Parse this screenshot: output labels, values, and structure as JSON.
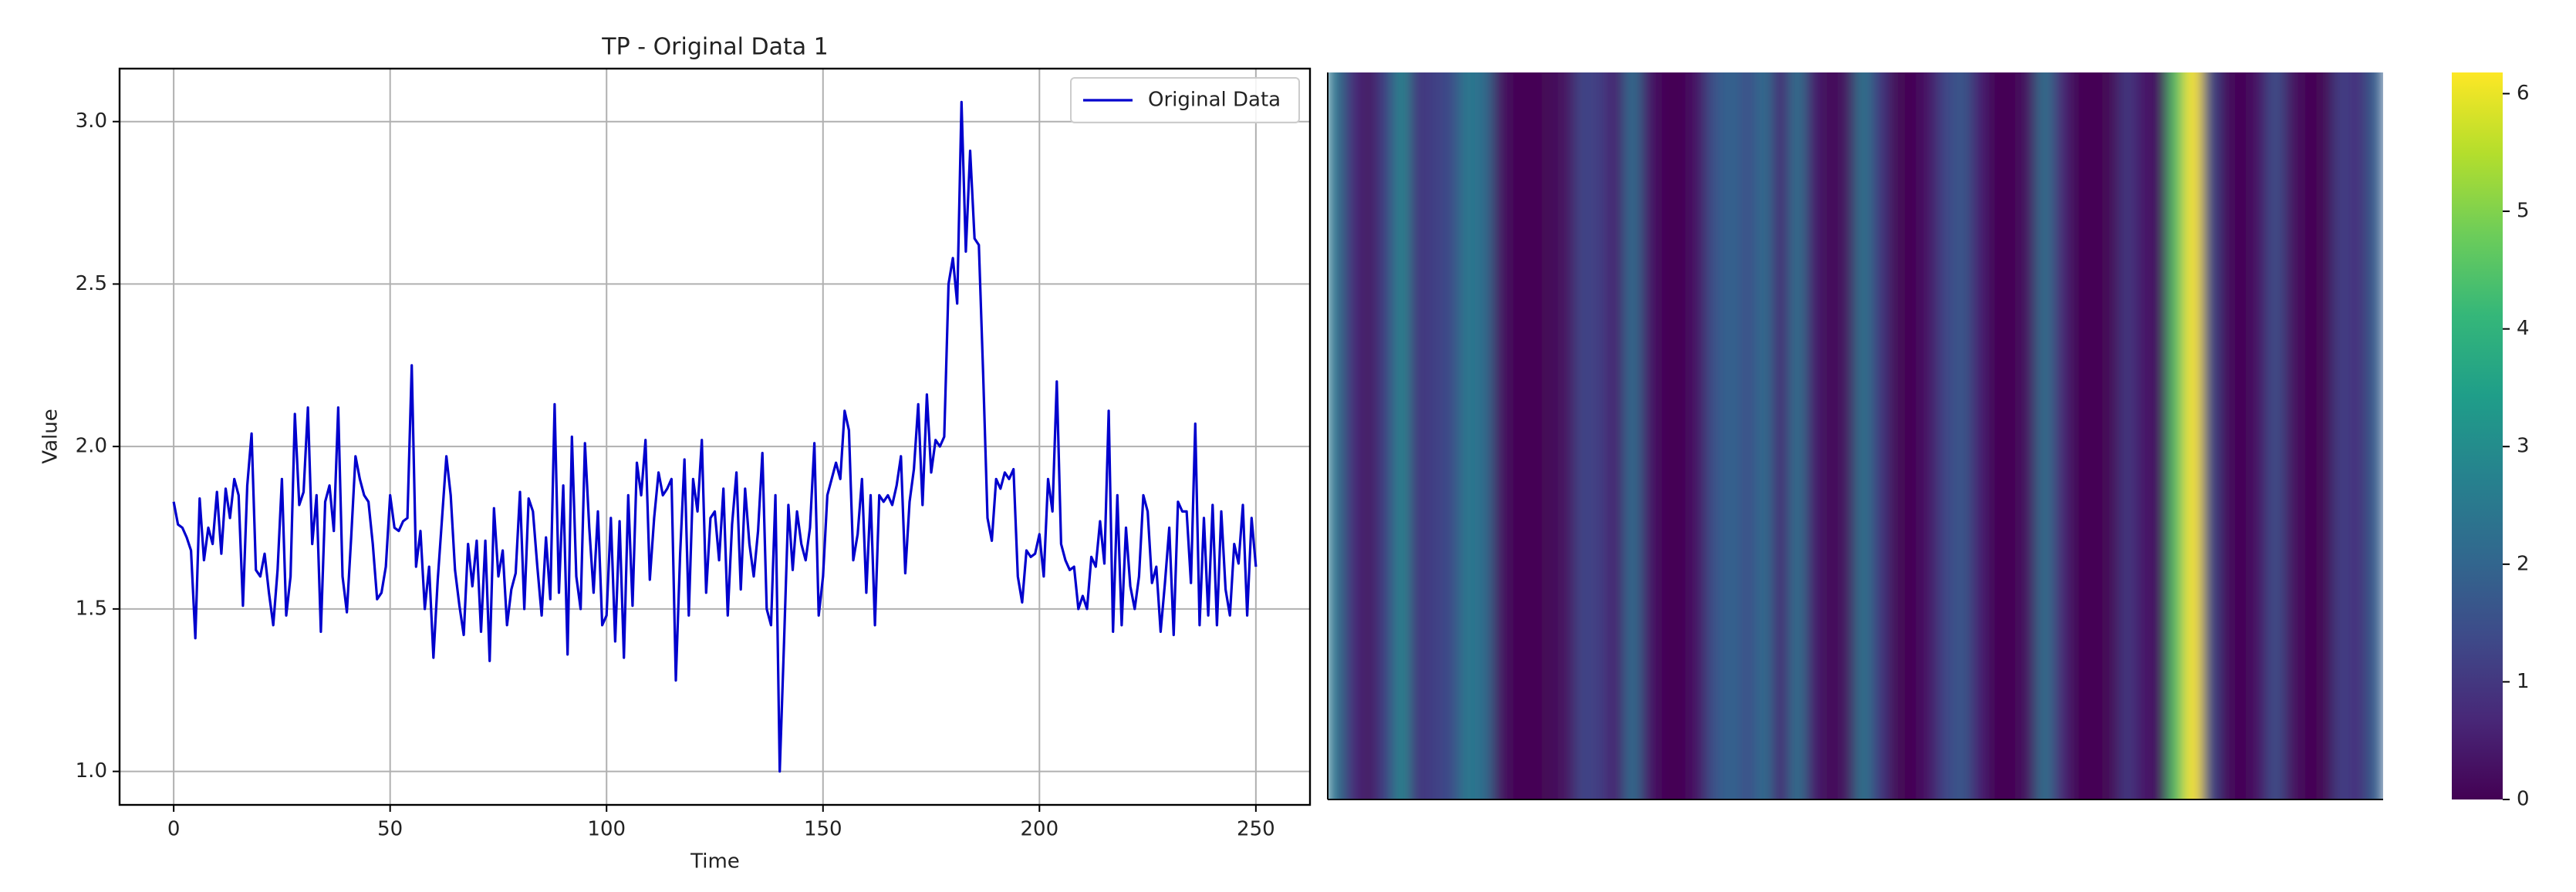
{
  "chart_data": [
    {
      "type": "line",
      "title": "TP - Original Data 1",
      "xlabel": "Time",
      "ylabel": "Value",
      "x": [
        0,
        1,
        2,
        3,
        4,
        5,
        6,
        7,
        8,
        9,
        10,
        11,
        12,
        13,
        14,
        15,
        16,
        17,
        18,
        19,
        20,
        21,
        22,
        23,
        24,
        25,
        26,
        27,
        28,
        29,
        30,
        31,
        32,
        33,
        34,
        35,
        36,
        37,
        38,
        39,
        40,
        41,
        42,
        43,
        44,
        45,
        46,
        47,
        48,
        49,
        50,
        51,
        52,
        53,
        54,
        55,
        56,
        57,
        58,
        59,
        60,
        61,
        62,
        63,
        64,
        65,
        66,
        67,
        68,
        69,
        70,
        71,
        72,
        73,
        74,
        75,
        76,
        77,
        78,
        79,
        80,
        81,
        82,
        83,
        84,
        85,
        86,
        87,
        88,
        89,
        90,
        91,
        92,
        93,
        94,
        95,
        96,
        97,
        98,
        99,
        100,
        101,
        102,
        103,
        104,
        105,
        106,
        107,
        108,
        109,
        110,
        111,
        112,
        113,
        114,
        115,
        116,
        117,
        118,
        119,
        120,
        121,
        122,
        123,
        124,
        125,
        126,
        127,
        128,
        129,
        130,
        131,
        132,
        133,
        134,
        135,
        136,
        137,
        138,
        139,
        140,
        141,
        142,
        143,
        144,
        145,
        146,
        147,
        148,
        149,
        150,
        151,
        152,
        153,
        154,
        155,
        156,
        157,
        158,
        159,
        160,
        161,
        162,
        163,
        164,
        165,
        166,
        167,
        168,
        169,
        170,
        171,
        172,
        173,
        174,
        175,
        176,
        177,
        178,
        179,
        180,
        181,
        182,
        183,
        184,
        185,
        186,
        187,
        188,
        189,
        190,
        191,
        192,
        193,
        194,
        195,
        196,
        197,
        198,
        199,
        200,
        201,
        202,
        203,
        204,
        205,
        206,
        207,
        208,
        209,
        210,
        211,
        212,
        213,
        214,
        215,
        216,
        217,
        218,
        219,
        220,
        221,
        222,
        223,
        224,
        225,
        226,
        227,
        228,
        229,
        230,
        231,
        232,
        233,
        234,
        235,
        236,
        237,
        238,
        239,
        240,
        241,
        242,
        243,
        244,
        245,
        246,
        247,
        248,
        249,
        250
      ],
      "series": [
        {
          "name": "Original Data",
          "color": "#0000cd",
          "values": [
            1.83,
            1.76,
            1.75,
            1.72,
            1.68,
            1.41,
            1.84,
            1.65,
            1.75,
            1.7,
            1.86,
            1.67,
            1.87,
            1.78,
            1.9,
            1.85,
            1.51,
            1.88,
            2.04,
            1.62,
            1.6,
            1.67,
            1.55,
            1.45,
            1.62,
            1.9,
            1.48,
            1.6,
            2.1,
            1.82,
            1.86,
            2.12,
            1.7,
            1.85,
            1.43,
            1.83,
            1.88,
            1.74,
            2.12,
            1.6,
            1.49,
            1.72,
            1.97,
            1.9,
            1.85,
            1.83,
            1.7,
            1.53,
            1.55,
            1.63,
            1.85,
            1.75,
            1.74,
            1.77,
            1.78,
            2.25,
            1.63,
            1.74,
            1.5,
            1.63,
            1.35,
            1.59,
            1.78,
            1.97,
            1.85,
            1.62,
            1.51,
            1.42,
            1.7,
            1.57,
            1.71,
            1.43,
            1.71,
            1.34,
            1.81,
            1.6,
            1.68,
            1.45,
            1.56,
            1.61,
            1.86,
            1.5,
            1.84,
            1.8,
            1.63,
            1.48,
            1.72,
            1.53,
            2.13,
            1.55,
            1.88,
            1.36,
            2.03,
            1.6,
            1.5,
            2.01,
            1.75,
            1.55,
            1.8,
            1.45,
            1.48,
            1.78,
            1.4,
            1.77,
            1.35,
            1.85,
            1.51,
            1.95,
            1.85,
            2.02,
            1.59,
            1.78,
            1.92,
            1.85,
            1.87,
            1.9,
            1.28,
            1.67,
            1.96,
            1.48,
            1.9,
            1.8,
            2.02,
            1.55,
            1.78,
            1.8,
            1.65,
            1.87,
            1.48,
            1.76,
            1.92,
            1.56,
            1.87,
            1.7,
            1.6,
            1.74,
            1.98,
            1.5,
            1.45,
            1.85,
            1.0,
            1.4,
            1.82,
            1.62,
            1.8,
            1.7,
            1.65,
            1.75,
            2.01,
            1.48,
            1.6,
            1.85,
            1.9,
            1.95,
            1.9,
            2.11,
            2.05,
            1.65,
            1.73,
            1.9,
            1.55,
            1.85,
            1.45,
            1.85,
            1.83,
            1.85,
            1.82,
            1.88,
            1.97,
            1.61,
            1.83,
            1.93,
            2.13,
            1.82,
            2.16,
            1.92,
            2.02,
            2.0,
            2.03,
            2.5,
            2.58,
            2.44,
            3.06,
            2.6,
            2.91,
            2.64,
            2.62,
            2.22,
            1.78,
            1.71,
            1.9,
            1.87,
            1.92,
            1.9,
            1.93,
            1.6,
            1.52,
            1.68,
            1.66,
            1.67,
            1.73,
            1.6,
            1.9,
            1.8,
            2.2,
            1.7,
            1.65,
            1.62,
            1.63,
            1.5,
            1.54,
            1.5,
            1.66,
            1.63,
            1.77,
            1.64,
            2.11,
            1.43,
            1.85,
            1.45,
            1.75,
            1.57,
            1.5,
            1.6,
            1.85,
            1.8,
            1.58,
            1.63,
            1.43,
            1.58,
            1.75,
            1.42,
            1.83,
            1.8,
            1.8,
            1.58,
            2.07,
            1.45,
            1.78,
            1.48,
            1.82,
            1.45,
            1.8,
            1.56,
            1.48,
            1.7,
            1.64,
            1.82,
            1.48,
            1.78,
            1.63
          ]
        }
      ],
      "xlim": [
        -12.5,
        262.5
      ],
      "xticks": [
        0,
        50,
        100,
        150,
        200,
        250
      ],
      "ylim": [
        0.897,
        3.163
      ],
      "yticks": [
        {
          "value": 1,
          "label": "1.0"
        },
        1.5,
        {
          "value": 2,
          "label": "2.0"
        },
        2.5,
        {
          "value": 3,
          "label": "3.0"
        }
      ],
      "grid": true,
      "legend": "upper right"
    },
    {
      "type": "heatmap",
      "colormap": "viridis",
      "values": [
        2.4,
        0.8,
        0.3,
        1.2,
        2.8,
        0.9,
        1.2,
        1.4,
        2.5,
        2.2,
        0.3,
        0.0,
        0.0,
        0.1,
        0.3,
        1.3,
        1.1,
        0.5,
        2.2,
        0.4,
        0.0,
        0.0,
        0.4,
        1.6,
        2.0,
        1.5,
        2.2,
        0.6,
        2.3,
        0.5,
        0.1,
        0.3,
        2.4,
        1.0,
        0.1,
        0.0,
        0.4,
        1.3,
        1.7,
        0.6,
        0.0,
        0.0,
        0.3,
        2.3,
        0.7,
        0.0,
        0.0,
        0.1,
        1.0,
        0.4,
        0.2,
        4.5,
        6.2,
        1.4,
        0.2,
        0.0,
        0.4,
        1.5,
        0.3,
        0.0,
        0.1,
        1.2,
        0.8,
        1.8
      ],
      "clim": [
        0,
        6.18
      ],
      "colorbar_ticks": [
        0,
        1,
        2,
        3,
        4,
        5,
        6
      ]
    }
  ]
}
